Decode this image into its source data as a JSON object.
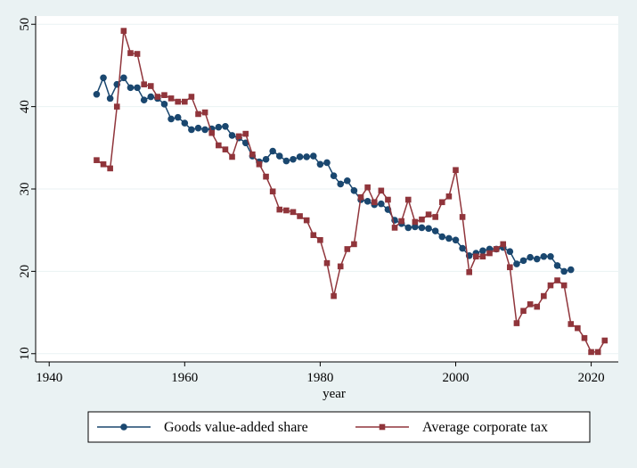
{
  "chart_data": {
    "type": "line",
    "xlabel": "year",
    "ylabel": "",
    "xlim": [
      1938,
      2024
    ],
    "ylim": [
      9,
      51
    ],
    "xticks": [
      1940,
      1960,
      1980,
      2000,
      2020
    ],
    "yticks": [
      10,
      20,
      30,
      40,
      50
    ],
    "grid": "horizontal",
    "legend_position": "bottom",
    "series": [
      {
        "name": "Goods value-added share",
        "color": "#1a476f",
        "marker": "circle",
        "x": [
          1947,
          1948,
          1949,
          1950,
          1951,
          1952,
          1953,
          1954,
          1955,
          1956,
          1957,
          1958,
          1959,
          1960,
          1961,
          1962,
          1963,
          1964,
          1965,
          1966,
          1967,
          1968,
          1969,
          1970,
          1971,
          1972,
          1973,
          1974,
          1975,
          1976,
          1977,
          1978,
          1979,
          1980,
          1981,
          1982,
          1983,
          1984,
          1985,
          1986,
          1987,
          1988,
          1989,
          1990,
          1991,
          1992,
          1993,
          1994,
          1995,
          1996,
          1997,
          1998,
          1999,
          2000,
          2001,
          2002,
          2003,
          2004,
          2005,
          2006,
          2007,
          2008,
          2009,
          2010,
          2011,
          2012,
          2013,
          2014,
          2015,
          2016,
          2017
        ],
        "values": [
          41.5,
          43.5,
          41.0,
          42.7,
          43.5,
          42.3,
          42.3,
          40.8,
          41.2,
          41.0,
          40.3,
          38.5,
          38.7,
          38.0,
          37.2,
          37.4,
          37.2,
          37.3,
          37.5,
          37.6,
          36.5,
          36.2,
          35.6,
          34.0,
          33.3,
          33.6,
          34.6,
          34.0,
          33.4,
          33.6,
          33.9,
          33.9,
          34.0,
          33.0,
          33.2,
          31.6,
          30.6,
          31.0,
          29.8,
          28.7,
          28.5,
          28.1,
          28.2,
          27.5,
          26.2,
          25.8,
          25.3,
          25.4,
          25.3,
          25.2,
          24.9,
          24.2,
          24.0,
          23.8,
          22.8,
          21.9,
          22.2,
          22.5,
          22.7,
          22.7,
          22.9,
          22.4,
          20.9,
          21.3,
          21.7,
          21.5,
          21.8,
          21.8,
          20.7,
          20.0,
          20.2
        ]
      },
      {
        "name": "Average corporate tax",
        "color": "#90353b",
        "marker": "square",
        "x": [
          1947,
          1948,
          1949,
          1950,
          1951,
          1952,
          1953,
          1954,
          1955,
          1956,
          1957,
          1958,
          1959,
          1960,
          1961,
          1962,
          1963,
          1964,
          1965,
          1966,
          1967,
          1968,
          1969,
          1970,
          1971,
          1972,
          1973,
          1974,
          1975,
          1976,
          1977,
          1978,
          1979,
          1980,
          1981,
          1982,
          1983,
          1984,
          1985,
          1986,
          1987,
          1988,
          1989,
          1990,
          1991,
          1992,
          1993,
          1994,
          1995,
          1996,
          1997,
          1998,
          1999,
          2000,
          2001,
          2002,
          2003,
          2004,
          2005,
          2006,
          2007,
          2008,
          2009,
          2010,
          2011,
          2012,
          2013,
          2014,
          2015,
          2016,
          2017,
          2018,
          2019,
          2020,
          2021,
          2022
        ],
        "values": [
          33.5,
          33.0,
          32.5,
          40.0,
          49.2,
          46.5,
          46.4,
          42.7,
          42.5,
          41.2,
          41.4,
          41.0,
          40.6,
          40.6,
          41.2,
          39.1,
          39.3,
          36.8,
          35.3,
          34.8,
          33.9,
          36.4,
          36.7,
          34.2,
          33.0,
          31.5,
          29.7,
          27.5,
          27.4,
          27.2,
          26.7,
          26.2,
          24.4,
          23.8,
          21.0,
          17.0,
          20.6,
          22.7,
          23.3,
          29.0,
          30.2,
          28.4,
          29.8,
          28.7,
          25.3,
          26.1,
          28.7,
          26.0,
          26.3,
          26.9,
          26.6,
          28.4,
          29.1,
          32.3,
          26.6,
          19.9,
          21.8,
          21.8,
          22.2,
          22.7,
          23.3,
          20.5,
          13.7,
          15.2,
          16.0,
          15.7,
          17.0,
          18.3,
          18.9,
          18.3,
          13.6,
          13.1,
          11.9,
          10.2,
          10.2,
          11.6
        ]
      }
    ]
  }
}
